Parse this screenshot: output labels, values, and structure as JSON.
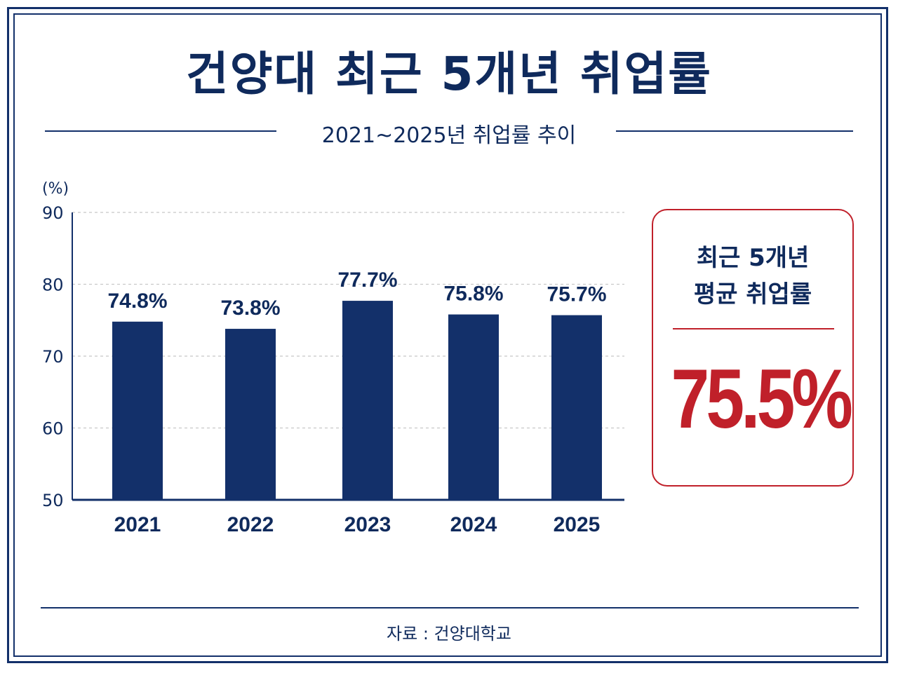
{
  "title": "건양대 최근 5개년 취업률",
  "subtitle": "2021~2025년 취업률 추이",
  "average": {
    "label": "최근 5개년\n평균 취업률",
    "value": "75.5%"
  },
  "source": "자료 : 건양대학교",
  "colors": {
    "navy": "#13306a",
    "red": "#c0202a",
    "grid": "#c8c8c8"
  },
  "chart_data": {
    "type": "bar",
    "unit_label": "(%)",
    "categories": [
      "2021",
      "2022",
      "2023",
      "2024",
      "2025"
    ],
    "values": [
      74.8,
      73.8,
      77.7,
      75.8,
      75.7
    ],
    "value_labels": [
      "74.8%",
      "73.8%",
      "77.7%",
      "75.8%",
      "75.7%"
    ],
    "ylim": [
      50,
      90
    ],
    "yticks": [
      50,
      60,
      70,
      80,
      90
    ],
    "grid": true,
    "bar_color": "#13306a"
  }
}
